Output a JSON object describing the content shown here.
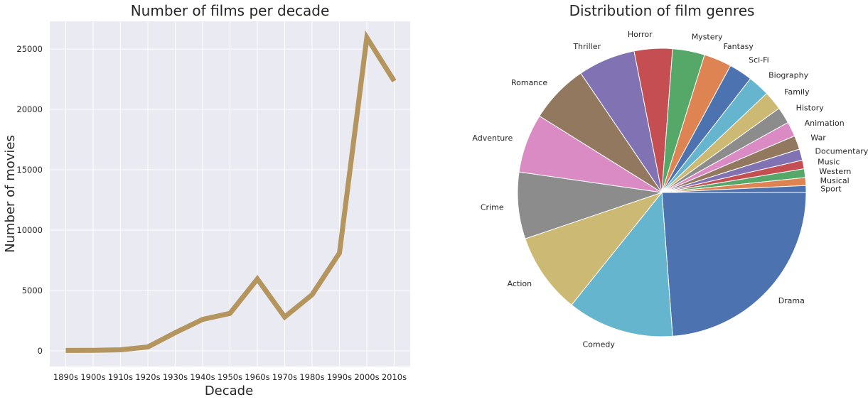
{
  "chart_data": [
    {
      "type": "line",
      "title": "Number of films per decade",
      "xlabel": "Decade",
      "ylabel": "Number of movies",
      "categories": [
        "1890s",
        "1900s",
        "1910s",
        "1920s",
        "1930s",
        "1940s",
        "1950s",
        "1960s",
        "1970s",
        "1980s",
        "1990s",
        "2000s",
        "2010s"
      ],
      "series": [
        {
          "values": [
            30,
            40,
            80,
            320,
            1500,
            2600,
            3100,
            5950,
            2800,
            4650,
            8100,
            25950,
            22350
          ]
        }
      ],
      "ylim": [
        -1300,
        27300
      ],
      "yticks": [
        0,
        5000,
        10000,
        15000,
        20000,
        25000
      ],
      "grid": true,
      "colors": {
        "line": "#b5955e",
        "background": "#eaeaf2",
        "grid": "#ffffff"
      }
    },
    {
      "type": "pie",
      "title": "Distribution of film genres",
      "start": "3 o'clock, clockwise",
      "slices": [
        {
          "label": "Drama",
          "value": 24.5,
          "color": "#4c72b0"
        },
        {
          "label": "Comedy",
          "value": 12.3,
          "color": "#64b5cd"
        },
        {
          "label": "Action",
          "value": 9.3,
          "color": "#ccb974"
        },
        {
          "label": "Crime",
          "value": 7.7,
          "color": "#8c8c8c"
        },
        {
          "label": "Adventure",
          "value": 6.8,
          "color": "#da8bc3"
        },
        {
          "label": "Romance",
          "value": 6.8,
          "color": "#937860"
        },
        {
          "label": "Thriller",
          "value": 6.6,
          "color": "#8172b3"
        },
        {
          "label": "Horror",
          "value": 4.4,
          "color": "#c44e52"
        },
        {
          "label": "Mystery",
          "value": 3.7,
          "color": "#55a868"
        },
        {
          "label": "Fantasy",
          "value": 3.2,
          "color": "#dd8452"
        },
        {
          "label": "Sci-Fi",
          "value": 2.7,
          "color": "#4c72b0"
        },
        {
          "label": "Biography",
          "value": 2.5,
          "color": "#64b5cd"
        },
        {
          "label": "Family",
          "value": 2.2,
          "color": "#ccb974"
        },
        {
          "label": "History",
          "value": 1.9,
          "color": "#8c8c8c"
        },
        {
          "label": "Animation",
          "value": 1.7,
          "color": "#da8bc3"
        },
        {
          "label": "War",
          "value": 1.6,
          "color": "#937860"
        },
        {
          "label": "Documentary",
          "value": 1.3,
          "color": "#8172b3"
        },
        {
          "label": "Music",
          "value": 1.0,
          "color": "#c44e52"
        },
        {
          "label": "Western",
          "value": 1.0,
          "color": "#55a868"
        },
        {
          "label": "Musical",
          "value": 0.9,
          "color": "#dd8452"
        },
        {
          "label": "Sport",
          "value": 0.8,
          "color": "#4c72b0"
        }
      ]
    }
  ]
}
